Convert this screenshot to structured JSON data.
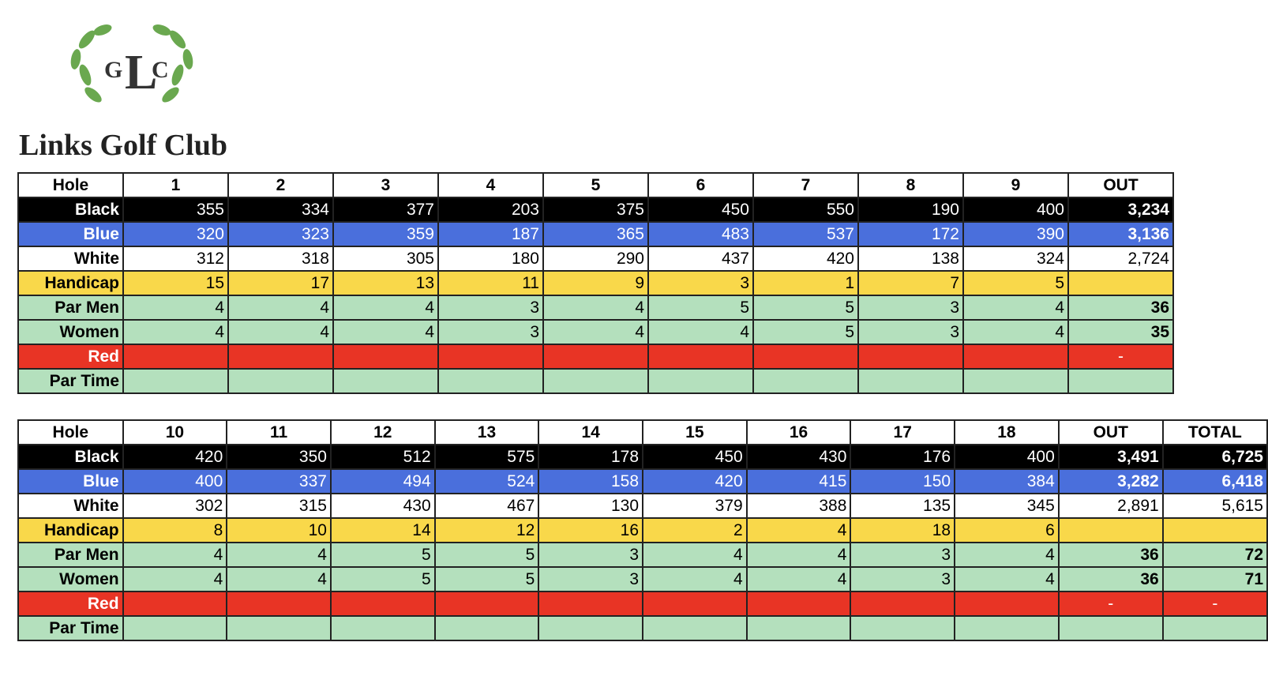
{
  "logo": {
    "monogram": [
      "G",
      "L",
      "C"
    ],
    "name": "Links Golf Club"
  },
  "tables": [
    {
      "header": [
        "Hole",
        1,
        2,
        3,
        4,
        5,
        6,
        7,
        8,
        9,
        "OUT"
      ],
      "rows": [
        {
          "label": "Black",
          "cells": [
            355,
            334,
            377,
            203,
            375,
            450,
            550,
            190,
            400,
            "3,234"
          ]
        },
        {
          "label": "Blue",
          "cells": [
            320,
            323,
            359,
            187,
            365,
            483,
            537,
            172,
            390,
            "3,136"
          ]
        },
        {
          "label": "White",
          "cells": [
            312,
            318,
            305,
            180,
            290,
            437,
            420,
            138,
            324,
            "2,724"
          ]
        },
        {
          "label": "Handicap",
          "cells": [
            15,
            17,
            13,
            11,
            9,
            3,
            1,
            7,
            5,
            null
          ]
        },
        {
          "label": "Par Men",
          "cells": [
            4,
            4,
            4,
            3,
            4,
            5,
            5,
            3,
            4,
            36
          ]
        },
        {
          "label": "Women",
          "cells": [
            4,
            4,
            4,
            3,
            4,
            4,
            5,
            3,
            4,
            35
          ]
        },
        {
          "label": "Red",
          "cells": [
            null,
            null,
            null,
            null,
            null,
            null,
            null,
            null,
            null,
            "-"
          ]
        },
        {
          "label": "Par Time",
          "cells": [
            null,
            null,
            null,
            null,
            null,
            null,
            null,
            null,
            null,
            null
          ]
        }
      ]
    },
    {
      "header": [
        "Hole",
        10,
        11,
        12,
        13,
        14,
        15,
        16,
        17,
        18,
        "OUT",
        "TOTAL"
      ],
      "rows": [
        {
          "label": "Black",
          "cells": [
            420,
            350,
            512,
            575,
            178,
            450,
            430,
            176,
            400,
            "3,491",
            "6,725"
          ]
        },
        {
          "label": "Blue",
          "cells": [
            400,
            337,
            494,
            524,
            158,
            420,
            415,
            150,
            384,
            "3,282",
            "6,418"
          ]
        },
        {
          "label": "White",
          "cells": [
            302,
            315,
            430,
            467,
            130,
            379,
            388,
            135,
            345,
            "2,891",
            "5,615"
          ]
        },
        {
          "label": "Handicap",
          "cells": [
            8,
            10,
            14,
            12,
            16,
            2,
            4,
            18,
            6,
            null,
            null
          ]
        },
        {
          "label": "Par Men",
          "cells": [
            4,
            4,
            5,
            5,
            3,
            4,
            4,
            3,
            4,
            36,
            72
          ]
        },
        {
          "label": "Women",
          "cells": [
            4,
            4,
            5,
            5,
            3,
            4,
            4,
            3,
            4,
            36,
            71
          ]
        },
        {
          "label": "Red",
          "cells": [
            null,
            null,
            null,
            null,
            null,
            null,
            null,
            null,
            null,
            "-",
            "-"
          ]
        },
        {
          "label": "Par Time",
          "cells": [
            null,
            null,
            null,
            null,
            null,
            null,
            null,
            null,
            null,
            null,
            null
          ]
        }
      ]
    }
  ]
}
